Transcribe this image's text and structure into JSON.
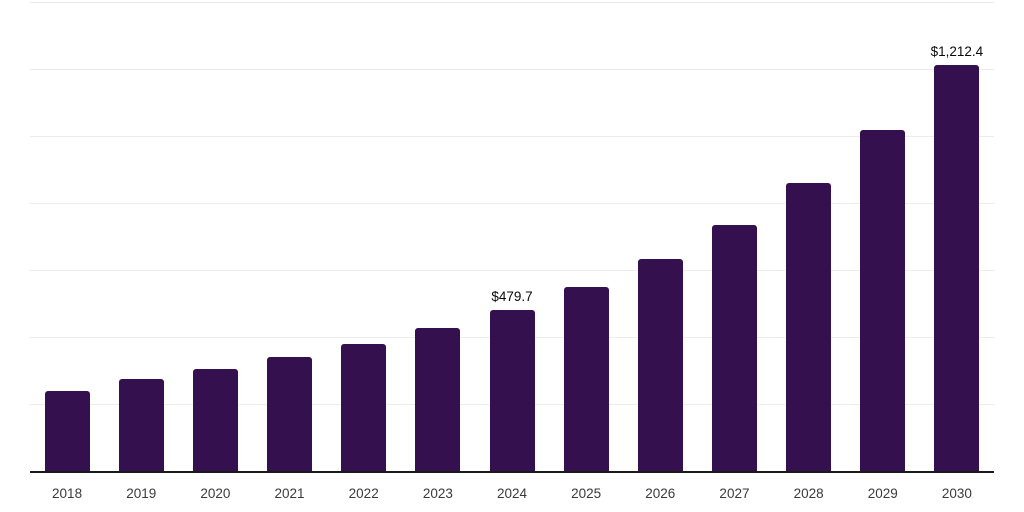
{
  "chart_data": {
    "type": "bar",
    "title": "",
    "xlabel": "",
    "ylabel": "",
    "categories": [
      "2018",
      "2019",
      "2020",
      "2021",
      "2022",
      "2023",
      "2024",
      "2025",
      "2026",
      "2027",
      "2028",
      "2029",
      "2030"
    ],
    "values": [
      240,
      276,
      304,
      339,
      379,
      427,
      479.7,
      548,
      633,
      734,
      860,
      1018,
      1212.4
    ],
    "data_labels": [
      {
        "index": 6,
        "text": "$479.7"
      },
      {
        "index": 12,
        "text": "$1,212.4"
      }
    ],
    "ylim": [
      0,
      1400
    ],
    "grid_interval": 200,
    "grid": true,
    "legend": false,
    "colors": {
      "bar": "#35104E",
      "gridline": "#ececec",
      "axis_line": "#1a1a1a",
      "tick_label": "#3a3a3a",
      "data_label": "#0a0a0a",
      "background": "#ffffff"
    }
  }
}
